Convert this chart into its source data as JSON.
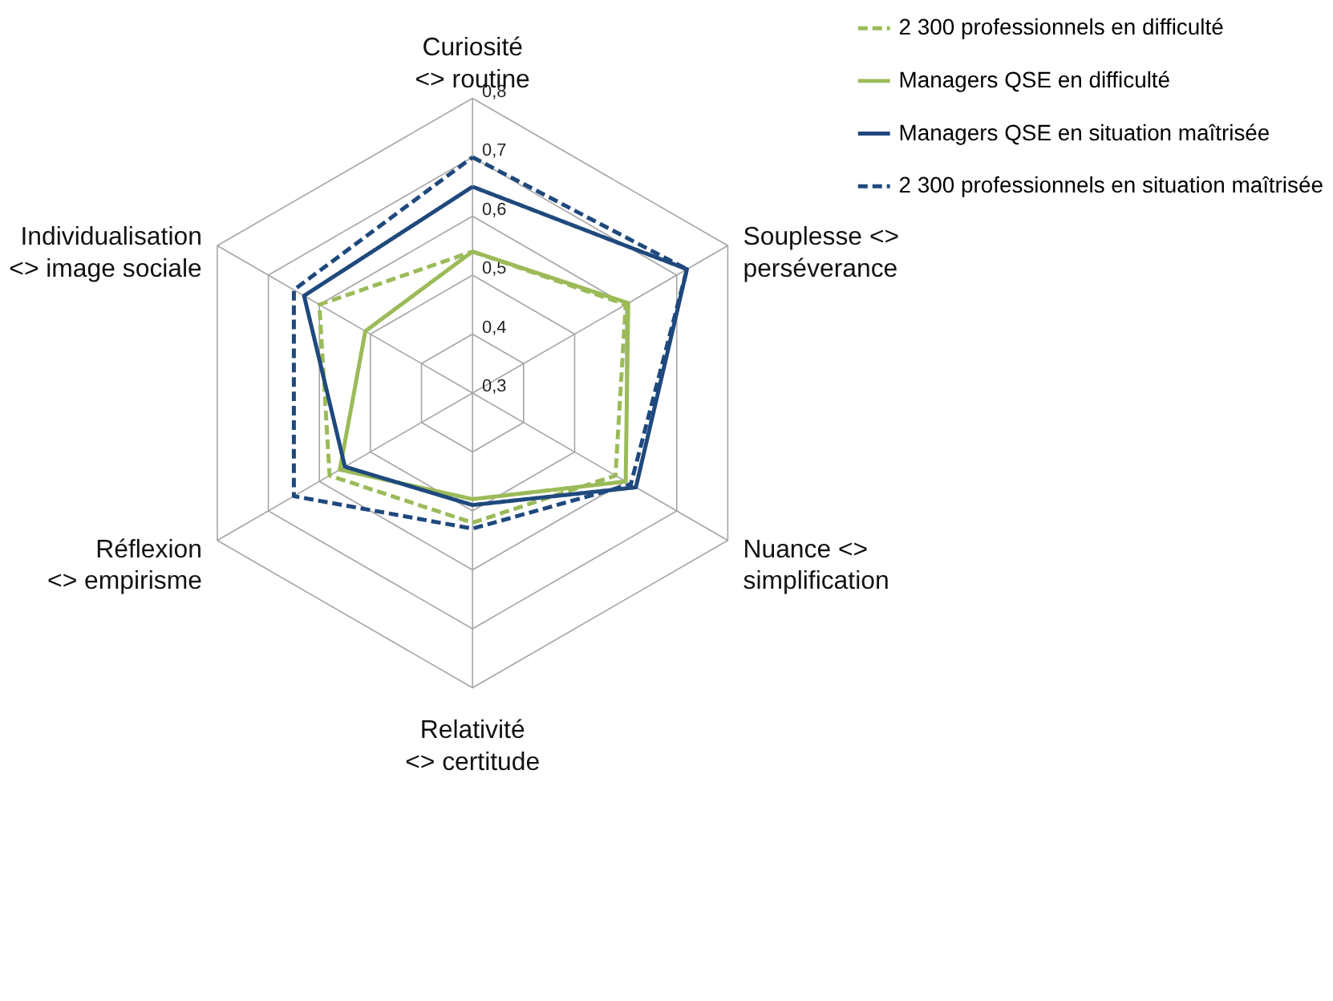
{
  "chart_data": {
    "type": "radar",
    "categories": [
      "Curiosité <> routine",
      "Souplesse <> perséverance",
      "Nuance <> simplification",
      "Relativité <> certitude",
      "Réflexion <> empirisme",
      "Individualisation <> image sociale"
    ],
    "ylim": [
      0.3,
      0.8
    ],
    "yticks": [
      {
        "value": 0.3,
        "label": "0,3"
      },
      {
        "value": 0.4,
        "label": "0,4"
      },
      {
        "value": 0.5,
        "label": "0,5"
      },
      {
        "value": 0.6,
        "label": "0,6"
      },
      {
        "value": 0.7,
        "label": "0,7"
      },
      {
        "value": 0.8,
        "label": "0,8"
      }
    ],
    "grid": true,
    "legend": "top right",
    "marker": "none",
    "series": [
      {
        "name": "2 300 professionnels  en difficulté",
        "color": "#9bbb59",
        "line_style": "dashed",
        "values": [
          0.54,
          0.6,
          0.58,
          0.52,
          0.58,
          0.6
        ]
      },
      {
        "name": "Managers QSE en difficulté",
        "color": "#9bbb59",
        "line_style": "solid",
        "values": [
          0.54,
          0.605,
          0.6,
          0.48,
          0.56,
          0.51
        ]
      },
      {
        "name": "Managers QSE en situation maîtrisée",
        "color": "#1f497d",
        "line_style": "solid",
        "values": [
          0.65,
          0.72,
          0.62,
          0.49,
          0.55,
          0.63
        ]
      },
      {
        "name": "2 300 professionnels en situation maîtrisée",
        "color": "#1f497d",
        "line_style": "dashed",
        "values": [
          0.7,
          0.72,
          0.61,
          0.53,
          0.65,
          0.65
        ]
      }
    ]
  }
}
